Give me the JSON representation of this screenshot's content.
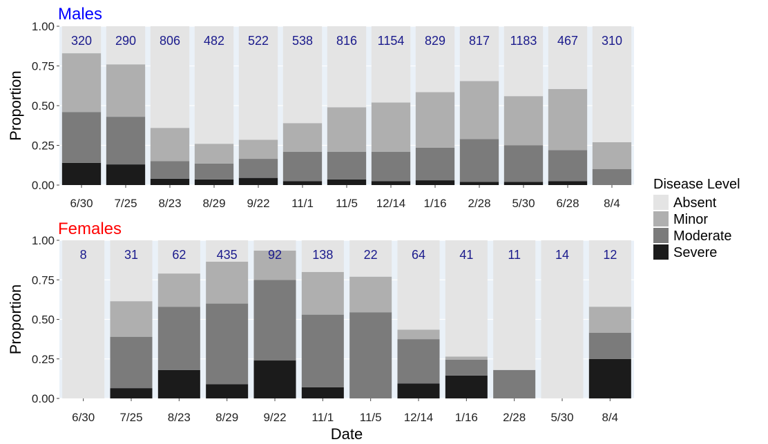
{
  "colors": {
    "Absent": "#e4e4e4",
    "Minor": "#afafaf",
    "Moderate": "#7b7b7b",
    "Severe": "#1b1b1b",
    "panel_bg": "#eaf1f8",
    "males_title": "#0000ff",
    "females_title": "#ff0000",
    "count_text": "#1a1a8c"
  },
  "legend": {
    "title": "Disease Level",
    "items": [
      "Absent",
      "Minor",
      "Moderate",
      "Severe"
    ]
  },
  "chart_data": [
    {
      "type": "bar",
      "stacked": true,
      "title": "Males",
      "ylabel": "Proportion",
      "xlabel": "",
      "ylim": [
        0,
        1
      ],
      "yticks": [
        "0.00",
        "0.25",
        "0.50",
        "0.75",
        "1.00"
      ],
      "categories": [
        "6/30",
        "7/25",
        "8/23",
        "8/29",
        "9/22",
        "11/1",
        "11/5",
        "12/14",
        "1/16",
        "2/28",
        "5/30",
        "6/28",
        "8/4"
      ],
      "counts": [
        "320",
        "290",
        "806",
        "482",
        "522",
        "538",
        "816",
        "1154",
        "829",
        "817",
        "1183",
        "467",
        "310"
      ],
      "series": [
        {
          "name": "Severe",
          "values": [
            0.14,
            0.13,
            0.04,
            0.035,
            0.045,
            0.025,
            0.035,
            0.025,
            0.03,
            0.02,
            0.02,
            0.025,
            0.0
          ]
        },
        {
          "name": "Moderate",
          "values": [
            0.32,
            0.3,
            0.11,
            0.1,
            0.12,
            0.185,
            0.175,
            0.185,
            0.205,
            0.27,
            0.23,
            0.195,
            0.1
          ]
        },
        {
          "name": "Minor",
          "values": [
            0.37,
            0.33,
            0.21,
            0.125,
            0.12,
            0.18,
            0.28,
            0.31,
            0.35,
            0.365,
            0.31,
            0.385,
            0.17
          ]
        },
        {
          "name": "Absent",
          "values": [
            0.17,
            0.24,
            0.64,
            0.74,
            0.715,
            0.61,
            0.51,
            0.48,
            0.415,
            0.345,
            0.44,
            0.395,
            0.73
          ]
        }
      ]
    },
    {
      "type": "bar",
      "stacked": true,
      "title": "Females",
      "ylabel": "Proportion",
      "xlabel": "Date",
      "ylim": [
        0,
        1
      ],
      "yticks": [
        "0.00",
        "0.25",
        "0.50",
        "0.75",
        "1.00"
      ],
      "categories": [
        "6/30",
        "7/25",
        "8/23",
        "8/29",
        "9/22",
        "11/1",
        "11/5",
        "12/14",
        "1/16",
        "2/28",
        "5/30",
        "8/4"
      ],
      "counts": [
        "8",
        "31",
        "62",
        "435",
        "92",
        "138",
        "22",
        "64",
        "41",
        "11",
        "14",
        "12"
      ],
      "series": [
        {
          "name": "Severe",
          "values": [
            0.0,
            0.065,
            0.18,
            0.09,
            0.24,
            0.07,
            0.0,
            0.095,
            0.145,
            0.0,
            0.0,
            0.25
          ]
        },
        {
          "name": "Moderate",
          "values": [
            0.0,
            0.325,
            0.4,
            0.51,
            0.51,
            0.46,
            0.545,
            0.28,
            0.1,
            0.18,
            0.0,
            0.165
          ]
        },
        {
          "name": "Minor",
          "values": [
            0.0,
            0.225,
            0.21,
            0.265,
            0.185,
            0.27,
            0.225,
            0.06,
            0.02,
            0.0,
            0.0,
            0.165
          ]
        },
        {
          "name": "Absent",
          "values": [
            1.0,
            0.385,
            0.21,
            0.135,
            0.065,
            0.2,
            0.23,
            0.565,
            0.735,
            0.82,
            1.0,
            0.42
          ]
        }
      ]
    }
  ]
}
